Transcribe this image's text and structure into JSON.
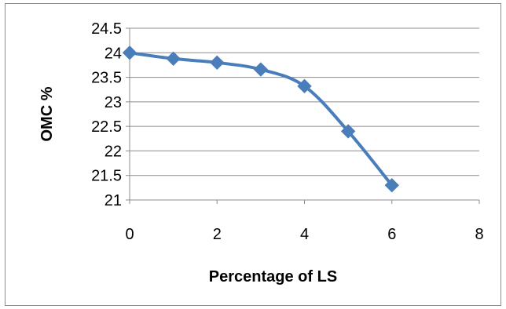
{
  "chart_data": {
    "type": "line",
    "title": "",
    "xlabel": "Percentage of LS",
    "ylabel": "OMC %",
    "xlim": [
      0,
      8
    ],
    "ylim": [
      21,
      24.5
    ],
    "xticks": [
      0,
      2,
      4,
      6,
      8
    ],
    "yticks": [
      21,
      21.5,
      22,
      22.5,
      23,
      23.5,
      24,
      24.5
    ],
    "grid": "horizontal",
    "legend": "none",
    "series": [
      {
        "color": "#4a7ebb",
        "marker": "diamond",
        "smooth": true,
        "x": [
          0,
          1,
          2,
          3,
          4,
          5,
          6
        ],
        "y": [
          24.0,
          23.88,
          23.8,
          23.66,
          23.32,
          22.4,
          21.3
        ]
      }
    ]
  }
}
